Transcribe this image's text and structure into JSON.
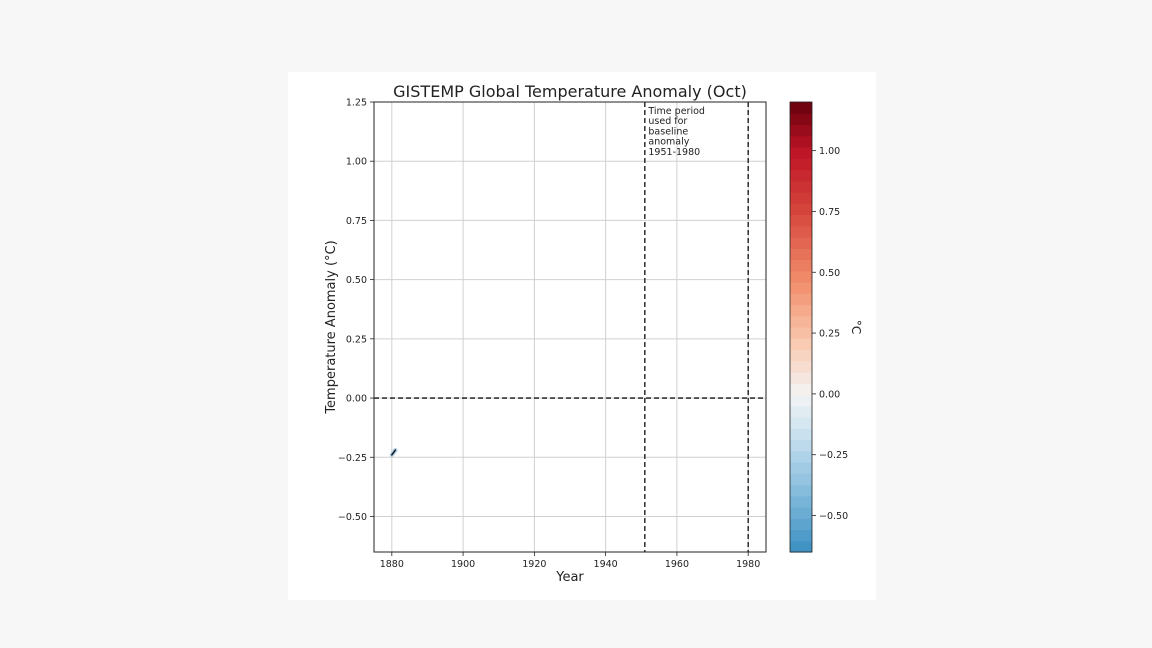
{
  "chart_data": {
    "type": "line",
    "title": "GISTEMP Global Temperature Anomaly (Oct)",
    "xlabel": "Year",
    "ylabel": "Temperature Anomaly (°C)",
    "xlim": [
      1875,
      1985
    ],
    "ylim": [
      -0.65,
      1.25
    ],
    "xticks": [
      1880,
      1900,
      1920,
      1940,
      1960,
      1980
    ],
    "yticks": [
      -0.5,
      -0.25,
      0.0,
      0.25,
      0.5,
      0.75,
      1.0,
      1.25
    ],
    "grid": true,
    "series": [
      {
        "x": [
          1880,
          1881
        ],
        "y": [
          -0.24,
          -0.22
        ],
        "color": "#15202b"
      }
    ],
    "reference_lines": {
      "horizontal": [
        0.0
      ],
      "vertical": [
        1951,
        1980
      ]
    },
    "annotation": {
      "text": [
        "Time period",
        "used for",
        "baseline",
        "anomaly",
        "1951-1980"
      ],
      "x": 1952,
      "y": 1.2
    },
    "colorbar": {
      "label": "°C",
      "range": [
        -0.65,
        1.2
      ],
      "ticks": [
        -0.5,
        -0.25,
        0.0,
        0.25,
        0.5,
        0.75,
        1.0
      ],
      "colormap": "RdBu_r",
      "low_color": "#3b8fc2",
      "mid_color": "#f4f4f4",
      "high_color": "#67000d"
    }
  }
}
